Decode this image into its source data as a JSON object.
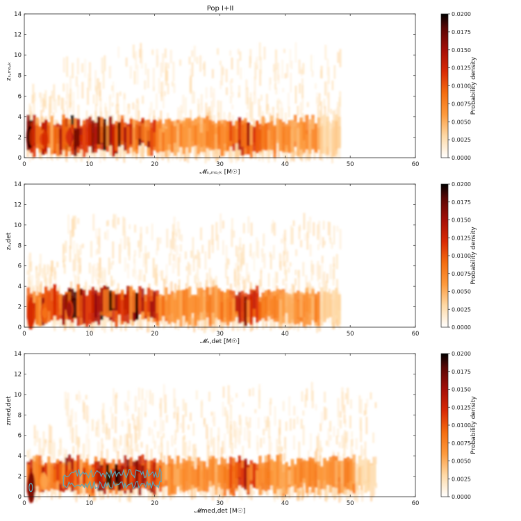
{
  "figure_title": "Pop I+II",
  "chart_data": [
    {
      "type": "heatmap",
      "title": "Pop I+II",
      "xlabel": "𝓜ₛ,ₘₒ꜀ₖ  [M☉]",
      "ylabel": "zₛ,ₘₒ꜀ₖ",
      "xlim": [
        0,
        60
      ],
      "ylim": [
        0,
        14
      ],
      "xticks": [
        0,
        10,
        20,
        30,
        40,
        50,
        60
      ],
      "yticks": [
        0,
        2,
        4,
        6,
        8,
        10,
        12,
        14
      ],
      "colorbar": {
        "label": "Probability density",
        "range": [
          0,
          0.02
        ],
        "ticks": [
          "0.0000",
          "0.0025",
          "0.0050",
          "0.0075",
          "0.0100",
          "0.0125",
          "0.0150",
          "0.0175",
          "0.0200"
        ]
      },
      "mass_max": 48.5,
      "contours": false,
      "peaks": [
        {
          "x": 1.0,
          "y": 2.0,
          "density": 0.02
        },
        {
          "x": 3.0,
          "y": 1.8,
          "density": 0.013
        },
        {
          "x": 7.0,
          "y": 2.0,
          "density": 0.016
        },
        {
          "x": 12.5,
          "y": 2.0,
          "density": 0.019
        },
        {
          "x": 18.0,
          "y": 2.0,
          "density": 0.016
        },
        {
          "x": 34.0,
          "y": 1.7,
          "density": 0.011
        }
      ]
    },
    {
      "type": "heatmap",
      "title": "",
      "xlabel": "𝓜ₛ,det  [M☉]",
      "ylabel": "zₛ,det",
      "xlim": [
        0,
        60
      ],
      "ylim": [
        0,
        14
      ],
      "xticks": [
        0,
        10,
        20,
        30,
        40,
        50,
        60
      ],
      "yticks": [
        0,
        2,
        4,
        6,
        8,
        10,
        12,
        14
      ],
      "colorbar": {
        "label": "Probability density",
        "range": [
          0,
          0.02
        ],
        "ticks": [
          "0.0000",
          "0.0025",
          "0.0050",
          "0.0075",
          "0.0100",
          "0.0125",
          "0.0150",
          "0.0175",
          "0.0200"
        ]
      },
      "mass_max": 48.5,
      "contours": false,
      "peaks": [
        {
          "x": 1.0,
          "y": 1.2,
          "density": 0.015
        },
        {
          "x": 3.0,
          "y": 1.4,
          "density": 0.012
        },
        {
          "x": 7.0,
          "y": 1.7,
          "density": 0.016
        },
        {
          "x": 12.5,
          "y": 1.8,
          "density": 0.019
        },
        {
          "x": 18.0,
          "y": 1.8,
          "density": 0.016
        },
        {
          "x": 34.0,
          "y": 1.6,
          "density": 0.011
        }
      ]
    },
    {
      "type": "heatmap",
      "title": "",
      "xlabel": "𝓜med,det  [M☉]",
      "ylabel": "zmed,det",
      "xlim": [
        0,
        60
      ],
      "ylim": [
        0,
        14
      ],
      "xticks": [
        0,
        10,
        20,
        30,
        40,
        50,
        60
      ],
      "yticks": [
        0,
        2,
        4,
        6,
        8,
        10,
        12,
        14
      ],
      "colorbar": {
        "label": "Probability density",
        "range": [
          0,
          0.02
        ],
        "ticks": [
          "0.0000",
          "0.0025",
          "0.0050",
          "0.0075",
          "0.0100",
          "0.0125",
          "0.0150",
          "0.0175",
          "0.0200"
        ]
      },
      "mass_max": 54,
      "contours": true,
      "contour_color": "#5aa8b8",
      "peaks": [
        {
          "x": 1.0,
          "y": 0.9,
          "density": 0.017
        },
        {
          "x": 3.0,
          "y": 1.5,
          "density": 0.009
        },
        {
          "x": 7.0,
          "y": 1.8,
          "density": 0.011
        },
        {
          "x": 13.0,
          "y": 1.8,
          "density": 0.02
        },
        {
          "x": 18.0,
          "y": 1.8,
          "density": 0.015
        },
        {
          "x": 34.0,
          "y": 1.5,
          "density": 0.01
        }
      ]
    }
  ]
}
